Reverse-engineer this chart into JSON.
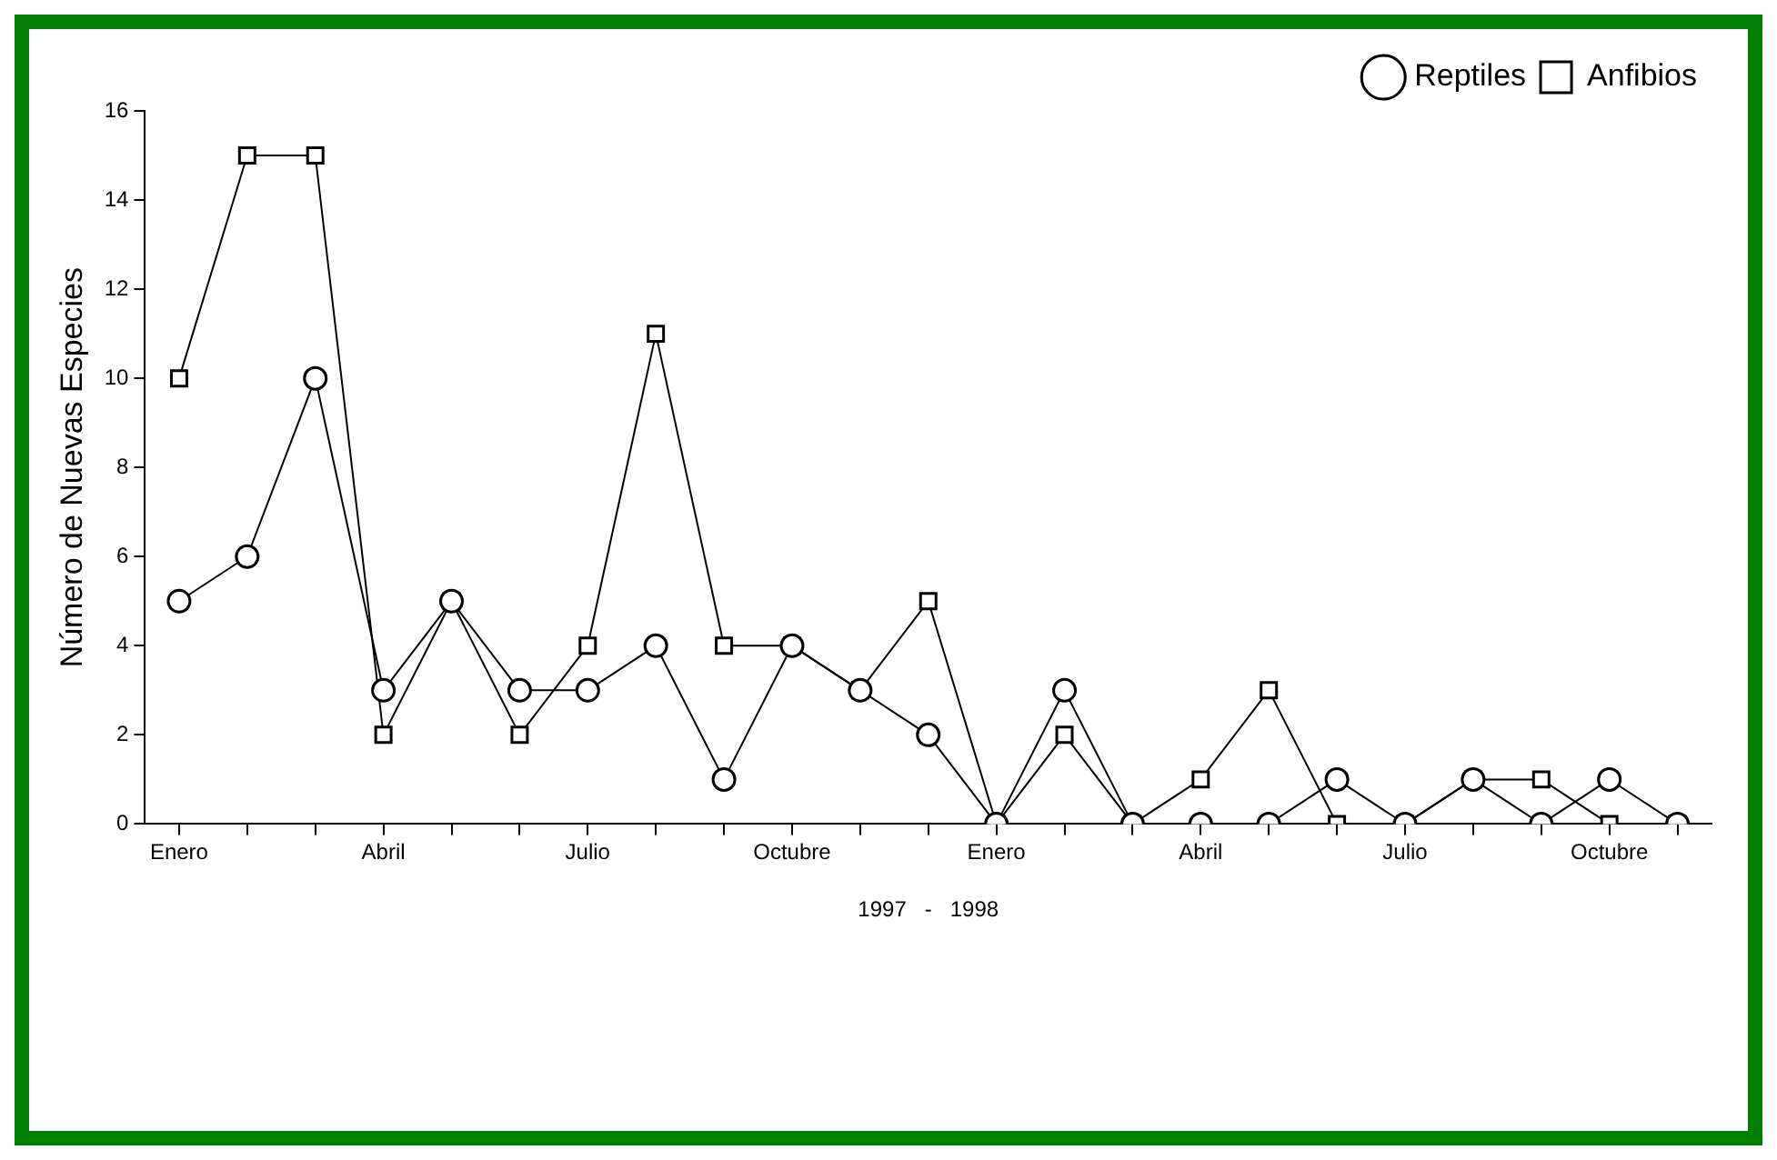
{
  "chart_data": {
    "type": "line",
    "ylabel": "Número de Nuevas Especies",
    "xlabel": "1997   -   1998",
    "categories": [
      "Enero",
      null,
      null,
      "Abril",
      null,
      null,
      "Julio",
      null,
      null,
      "Octubre",
      null,
      null,
      "Enero",
      null,
      null,
      "Abril",
      null,
      null,
      "Julio",
      null,
      null,
      "Octubre",
      null
    ],
    "series": [
      {
        "name": "Reptiles",
        "color": "#000000",
        "marker": "circle",
        "values": [
          5,
          6,
          10,
          3,
          5,
          3,
          3,
          4,
          1,
          4,
          3,
          2,
          0,
          3,
          0,
          0,
          0,
          1,
          0,
          1,
          0,
          1,
          0
        ]
      },
      {
        "name": "Anfibios",
        "color": "#000000",
        "marker": "square",
        "values": [
          10,
          15,
          15,
          2,
          5,
          2,
          4,
          11,
          4,
          4,
          3,
          5,
          0,
          2,
          0,
          1,
          3,
          0,
          0,
          1,
          1,
          0,
          0
        ]
      }
    ],
    "ylim": [
      0,
      16
    ],
    "yticks": [
      0,
      2,
      4,
      6,
      8,
      10,
      12,
      14,
      16
    ],
    "grid": false,
    "legend": "top right",
    "line_style": "solid"
  }
}
